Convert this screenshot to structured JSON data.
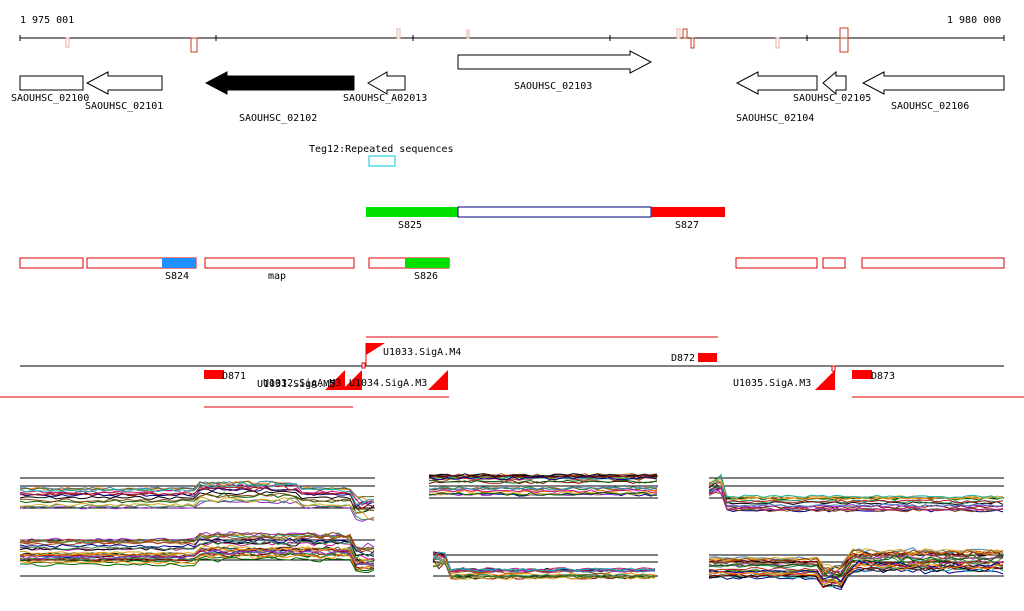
{
  "ruler": {
    "start_label": "1 975 001",
    "end_label": "1 980 000"
  },
  "genes": [
    {
      "label": "SAOUHSC_02100",
      "direction": "forward",
      "filled": false
    },
    {
      "label": "SAOUHSC_02101",
      "direction": "reverse",
      "filled": false
    },
    {
      "label": "SAOUHSC_02102",
      "direction": "reverse",
      "filled": true
    },
    {
      "label": "SAOUHSC_A02013",
      "direction": "reverse",
      "filled": false
    },
    {
      "label": "SAOUHSC_02103",
      "direction": "forward",
      "filled": false
    },
    {
      "label": "SAOUHSC_02104",
      "direction": "reverse",
      "filled": false
    },
    {
      "label": "SAOUHSC_02105",
      "direction": "reverse",
      "filled": false
    },
    {
      "label": "SAOUHSC_02106",
      "direction": "reverse",
      "filled": false
    }
  ],
  "repeats": {
    "label": "Teg12:Repeated sequences"
  },
  "segments_top": [
    {
      "label": "S825",
      "color": "#00e000"
    },
    {
      "label": "S827",
      "color": "#ff0000"
    }
  ],
  "segments_bottom": [
    {
      "label": "S824",
      "color": "#1e90ff"
    },
    {
      "label": "map",
      "color": "#ffffff"
    },
    {
      "label": "S826",
      "color": "#00e000"
    }
  ],
  "features": [
    {
      "label": "D871"
    },
    {
      "label": "D872"
    },
    {
      "label": "D873"
    },
    {
      "label": "U1033.SigA.M4"
    },
    {
      "label": "U1031.SigA.M5"
    },
    {
      "label": "U1032.SigA.M3"
    },
    {
      "label": "U1034.SigA.M3"
    },
    {
      "label": "U1035.SigA.M3"
    }
  ],
  "colors": {
    "outline_red": "#e00000",
    "feature_red": "#ff0000",
    "gene_fill": "#000000",
    "repeat_cyan": "#00c8d8"
  }
}
